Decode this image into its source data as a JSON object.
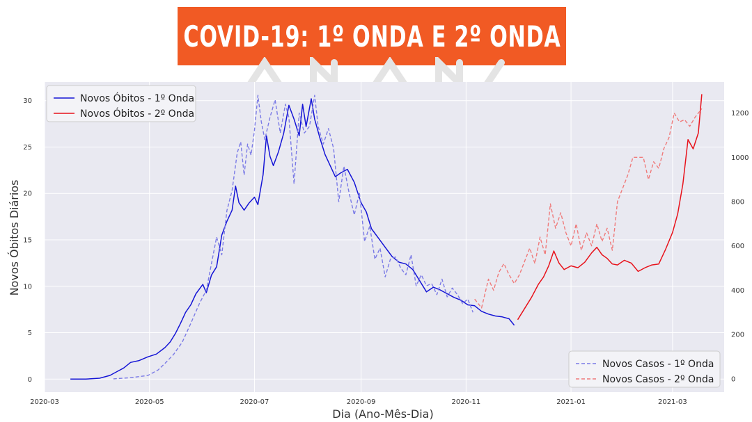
{
  "banner": {
    "title": "COVID-19: 1º ONDA E 2º ONDA"
  },
  "colors": {
    "banner_bg": "#f15a24",
    "plot_bg": "#e9e9f1",
    "grid": "#ffffff",
    "wave1": "#1515d6",
    "wave2": "#e8121b",
    "wave1_cases": "#7b7be6",
    "wave2_cases": "#ef7b7b"
  },
  "chart_data": {
    "type": "line",
    "title": "",
    "xlabel": "Dia (Ano-Mês-Dia)",
    "ylabel": "Novos Óbitos Diários",
    "y2label": "",
    "xlim": [
      "2020-03-01",
      "2021-03-31"
    ],
    "ylim": [
      -1.4,
      32
    ],
    "y2lim": [
      -60,
      1340
    ],
    "x_ticks": [
      "2020-03",
      "2020-05",
      "2020-07",
      "2020-09",
      "2020-11",
      "2021-01",
      "2021-03"
    ],
    "y_ticks": [
      0,
      5,
      10,
      15,
      20,
      25,
      30
    ],
    "y2_ticks": [
      0,
      200,
      400,
      600,
      800,
      1000,
      1200
    ],
    "grid": true,
    "legend_left": {
      "placement": "upper-left",
      "entries": [
        "Novos Óbitos - 1º Onda",
        "Novos Óbitos - 2º Onda"
      ]
    },
    "legend_right": {
      "placement": "lower-right",
      "entries": [
        "Novos Casos - 1º Onda",
        "Novos Casos - 2º Onda"
      ]
    },
    "series": [
      {
        "name": "Novos Óbitos - 1º Onda",
        "axis": "left",
        "style": "solid",
        "color": "#1515d6",
        "points": [
          [
            "2020-03-16",
            0
          ],
          [
            "2020-03-25",
            0
          ],
          [
            "2020-04-02",
            0.1
          ],
          [
            "2020-04-08",
            0.4
          ],
          [
            "2020-04-12",
            0.8
          ],
          [
            "2020-04-16",
            1.2
          ],
          [
            "2020-04-20",
            1.8
          ],
          [
            "2020-04-25",
            2.0
          ],
          [
            "2020-04-30",
            2.4
          ],
          [
            "2020-05-05",
            2.7
          ],
          [
            "2020-05-10",
            3.4
          ],
          [
            "2020-05-13",
            4.0
          ],
          [
            "2020-05-16",
            4.9
          ],
          [
            "2020-05-19",
            6.0
          ],
          [
            "2020-05-22",
            7.2
          ],
          [
            "2020-05-25",
            8.0
          ],
          [
            "2020-05-28",
            9.2
          ],
          [
            "2020-06-01",
            10.2
          ],
          [
            "2020-06-03",
            9.3
          ],
          [
            "2020-06-06",
            11.2
          ],
          [
            "2020-06-09",
            12.1
          ],
          [
            "2020-06-12",
            15.5
          ],
          [
            "2020-06-15",
            17.0
          ],
          [
            "2020-06-18",
            18.2
          ],
          [
            "2020-06-20",
            20.8
          ],
          [
            "2020-06-22",
            19.0
          ],
          [
            "2020-06-25",
            18.2
          ],
          [
            "2020-06-28",
            19.0
          ],
          [
            "2020-07-01",
            19.6
          ],
          [
            "2020-07-03",
            18.8
          ],
          [
            "2020-07-06",
            22.0
          ],
          [
            "2020-07-08",
            26.2
          ],
          [
            "2020-07-10",
            24.0
          ],
          [
            "2020-07-12",
            23.0
          ],
          [
            "2020-07-15",
            24.5
          ],
          [
            "2020-07-18",
            26.5
          ],
          [
            "2020-07-21",
            29.5
          ],
          [
            "2020-07-24",
            28.0
          ],
          [
            "2020-07-27",
            26.2
          ],
          [
            "2020-07-29",
            29.6
          ],
          [
            "2020-07-31",
            27.2
          ],
          [
            "2020-08-03",
            30.2
          ],
          [
            "2020-08-05",
            28.0
          ],
          [
            "2020-08-08",
            26.0
          ],
          [
            "2020-08-11",
            24.2
          ],
          [
            "2020-08-14",
            23.0
          ],
          [
            "2020-08-17",
            21.8
          ],
          [
            "2020-08-20",
            22.2
          ],
          [
            "2020-08-24",
            22.6
          ],
          [
            "2020-08-28",
            21.2
          ],
          [
            "2020-09-01",
            19.0
          ],
          [
            "2020-09-04",
            18.0
          ],
          [
            "2020-09-07",
            16.2
          ],
          [
            "2020-09-11",
            15.2
          ],
          [
            "2020-09-15",
            14.2
          ],
          [
            "2020-09-19",
            13.2
          ],
          [
            "2020-09-23",
            12.6
          ],
          [
            "2020-09-27",
            12.4
          ],
          [
            "2020-10-01",
            11.8
          ],
          [
            "2020-10-05",
            10.6
          ],
          [
            "2020-10-09",
            9.4
          ],
          [
            "2020-10-13",
            9.9
          ],
          [
            "2020-10-17",
            9.6
          ],
          [
            "2020-10-21",
            9.2
          ],
          [
            "2020-10-25",
            8.8
          ],
          [
            "2020-10-29",
            8.5
          ],
          [
            "2020-11-02",
            8.0
          ],
          [
            "2020-11-06",
            7.9
          ],
          [
            "2020-11-10",
            7.3
          ],
          [
            "2020-11-14",
            7.0
          ],
          [
            "2020-11-18",
            6.8
          ],
          [
            "2020-11-22",
            6.7
          ],
          [
            "2020-11-26",
            6.5
          ],
          [
            "2020-11-29",
            5.8
          ]
        ]
      },
      {
        "name": "Novos Óbitos - 2º Onda",
        "axis": "left",
        "style": "solid",
        "color": "#e8121b",
        "points": [
          [
            "2020-12-01",
            6.4
          ],
          [
            "2020-12-05",
            7.6
          ],
          [
            "2020-12-09",
            8.8
          ],
          [
            "2020-12-13",
            10.2
          ],
          [
            "2020-12-16",
            11.0
          ],
          [
            "2020-12-19",
            12.2
          ],
          [
            "2020-12-22",
            13.8
          ],
          [
            "2020-12-25",
            12.5
          ],
          [
            "2020-12-28",
            11.8
          ],
          [
            "2021-01-01",
            12.2
          ],
          [
            "2021-01-05",
            12.0
          ],
          [
            "2021-01-09",
            12.6
          ],
          [
            "2021-01-13",
            13.6
          ],
          [
            "2021-01-16",
            14.2
          ],
          [
            "2021-01-19",
            13.4
          ],
          [
            "2021-01-22",
            13.0
          ],
          [
            "2021-01-25",
            12.4
          ],
          [
            "2021-01-28",
            12.3
          ],
          [
            "2021-02-01",
            12.8
          ],
          [
            "2021-02-05",
            12.5
          ],
          [
            "2021-02-09",
            11.6
          ],
          [
            "2021-02-13",
            12.0
          ],
          [
            "2021-02-17",
            12.3
          ],
          [
            "2021-02-21",
            12.4
          ],
          [
            "2021-02-25",
            14.0
          ],
          [
            "2021-03-01",
            15.8
          ],
          [
            "2021-03-04",
            17.8
          ],
          [
            "2021-03-07",
            21.0
          ],
          [
            "2021-03-10",
            25.8
          ],
          [
            "2021-03-13",
            24.8
          ],
          [
            "2021-03-16",
            26.5
          ],
          [
            "2021-03-18",
            30.7
          ]
        ]
      },
      {
        "name": "Novos Casos - 1º Onda",
        "axis": "right",
        "style": "dashed",
        "color": "#7b7be6",
        "points": [
          [
            "2020-04-10",
            0
          ],
          [
            "2020-04-20",
            5
          ],
          [
            "2020-04-30",
            15
          ],
          [
            "2020-05-06",
            40
          ],
          [
            "2020-05-10",
            70
          ],
          [
            "2020-05-15",
            110
          ],
          [
            "2020-05-20",
            165
          ],
          [
            "2020-05-25",
            250
          ],
          [
            "2020-05-30",
            340
          ],
          [
            "2020-06-03",
            400
          ],
          [
            "2020-06-06",
            520
          ],
          [
            "2020-06-09",
            640
          ],
          [
            "2020-06-12",
            560
          ],
          [
            "2020-06-15",
            760
          ],
          [
            "2020-06-18",
            850
          ],
          [
            "2020-06-21",
            1020
          ],
          [
            "2020-06-23",
            1070
          ],
          [
            "2020-06-25",
            920
          ],
          [
            "2020-06-27",
            1060
          ],
          [
            "2020-06-29",
            1010
          ],
          [
            "2020-07-01",
            1120
          ],
          [
            "2020-07-03",
            1280
          ],
          [
            "2020-07-05",
            1160
          ],
          [
            "2020-07-07",
            1080
          ],
          [
            "2020-07-10",
            1180
          ],
          [
            "2020-07-13",
            1260
          ],
          [
            "2020-07-16",
            1110
          ],
          [
            "2020-07-19",
            1240
          ],
          [
            "2020-07-21",
            1180
          ],
          [
            "2020-07-24",
            880
          ],
          [
            "2020-07-27",
            1200
          ],
          [
            "2020-07-30",
            1110
          ],
          [
            "2020-08-02",
            1140
          ],
          [
            "2020-08-05",
            1280
          ],
          [
            "2020-08-07",
            1140
          ],
          [
            "2020-08-10",
            1060
          ],
          [
            "2020-08-13",
            1130
          ],
          [
            "2020-08-16",
            1040
          ],
          [
            "2020-08-19",
            800
          ],
          [
            "2020-08-22",
            960
          ],
          [
            "2020-08-25",
            840
          ],
          [
            "2020-08-28",
            740
          ],
          [
            "2020-08-31",
            840
          ],
          [
            "2020-09-03",
            620
          ],
          [
            "2020-09-06",
            690
          ],
          [
            "2020-09-09",
            540
          ],
          [
            "2020-09-12",
            590
          ],
          [
            "2020-09-15",
            460
          ],
          [
            "2020-09-18",
            540
          ],
          [
            "2020-09-21",
            550
          ],
          [
            "2020-09-24",
            500
          ],
          [
            "2020-09-27",
            470
          ],
          [
            "2020-09-30",
            560
          ],
          [
            "2020-10-03",
            420
          ],
          [
            "2020-10-06",
            470
          ],
          [
            "2020-10-09",
            420
          ],
          [
            "2020-10-12",
            430
          ],
          [
            "2020-10-15",
            380
          ],
          [
            "2020-10-18",
            450
          ],
          [
            "2020-10-21",
            370
          ],
          [
            "2020-10-24",
            410
          ],
          [
            "2020-10-27",
            380
          ],
          [
            "2020-10-30",
            340
          ],
          [
            "2020-11-02",
            360
          ],
          [
            "2020-11-05",
            300
          ]
        ]
      },
      {
        "name": "Novos Casos - 2º Onda",
        "axis": "right",
        "style": "dashed",
        "color": "#ef7b7b",
        "points": [
          [
            "2020-11-06",
            360
          ],
          [
            "2020-11-10",
            320
          ],
          [
            "2020-11-14",
            450
          ],
          [
            "2020-11-17",
            400
          ],
          [
            "2020-11-20",
            480
          ],
          [
            "2020-11-23",
            520
          ],
          [
            "2020-11-26",
            470
          ],
          [
            "2020-11-29",
            430
          ],
          [
            "2020-12-02",
            470
          ],
          [
            "2020-12-05",
            530
          ],
          [
            "2020-12-08",
            590
          ],
          [
            "2020-12-11",
            520
          ],
          [
            "2020-12-14",
            640
          ],
          [
            "2020-12-17",
            560
          ],
          [
            "2020-12-20",
            790
          ],
          [
            "2020-12-23",
            680
          ],
          [
            "2020-12-26",
            750
          ],
          [
            "2020-12-29",
            660
          ],
          [
            "2021-01-01",
            600
          ],
          [
            "2021-01-04",
            700
          ],
          [
            "2021-01-07",
            580
          ],
          [
            "2021-01-10",
            660
          ],
          [
            "2021-01-13",
            600
          ],
          [
            "2021-01-16",
            700
          ],
          [
            "2021-01-19",
            620
          ],
          [
            "2021-01-22",
            680
          ],
          [
            "2021-01-25",
            580
          ],
          [
            "2021-01-28",
            800
          ],
          [
            "2021-01-31",
            860
          ],
          [
            "2021-02-03",
            920
          ],
          [
            "2021-02-06",
            1000
          ],
          [
            "2021-02-09",
            1000
          ],
          [
            "2021-02-12",
            1000
          ],
          [
            "2021-02-15",
            900
          ],
          [
            "2021-02-18",
            980
          ],
          [
            "2021-02-21",
            950
          ],
          [
            "2021-02-24",
            1040
          ],
          [
            "2021-02-27",
            1090
          ],
          [
            "2021-03-02",
            1200
          ],
          [
            "2021-03-05",
            1160
          ],
          [
            "2021-03-08",
            1170
          ],
          [
            "2021-03-11",
            1140
          ],
          [
            "2021-03-14",
            1180
          ],
          [
            "2021-03-18",
            1220
          ]
        ]
      }
    ]
  }
}
